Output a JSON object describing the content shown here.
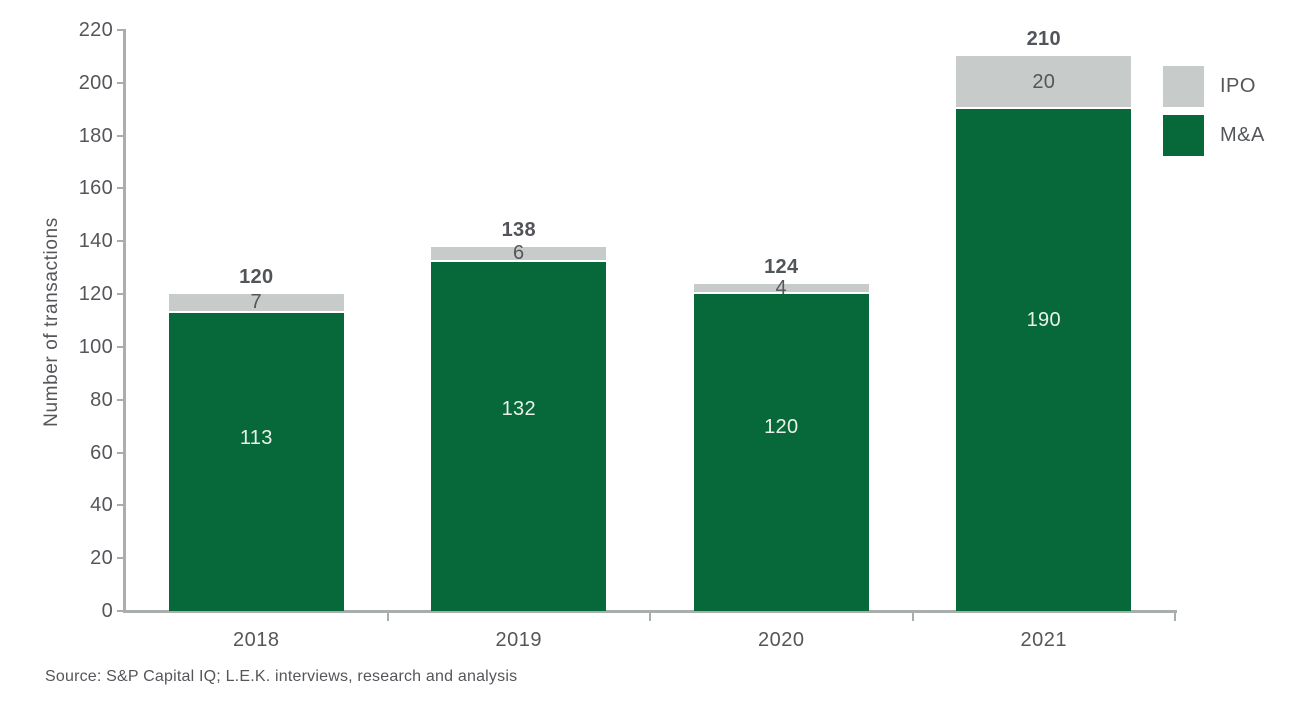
{
  "source": "Source: S&P Capital IQ; L.E.K. interviews, research and analysis",
  "chart_data": {
    "type": "bar",
    "stacked": true,
    "title": "",
    "xlabel": "",
    "ylabel": "Number of transactions",
    "categories": [
      "2018",
      "2019",
      "2020",
      "2021"
    ],
    "series": [
      {
        "name": "M&A",
        "color": "#07693a",
        "label_color": "#e9f1eb",
        "values": [
          113,
          132,
          120,
          190
        ]
      },
      {
        "name": "IPO",
        "color": "#c7cbca",
        "label_color": "#54565a",
        "values": [
          7,
          6,
          4,
          20
        ]
      }
    ],
    "totals": [
      120,
      138,
      124,
      210
    ],
    "ylim": [
      0,
      220
    ],
    "ytick_step": 20,
    "yticks": [
      0,
      20,
      40,
      60,
      80,
      100,
      120,
      140,
      160,
      180,
      200,
      220
    ],
    "legend": {
      "position": "top-right",
      "items": [
        "IPO",
        "M&A"
      ]
    },
    "grid": "off",
    "colors": {
      "mna": "#07693a",
      "ipo": "#c7cbca",
      "axis": "#a9adac",
      "text": "#54565a",
      "total_text": "#515459",
      "mna_label_text": "#e9f1eb"
    }
  }
}
